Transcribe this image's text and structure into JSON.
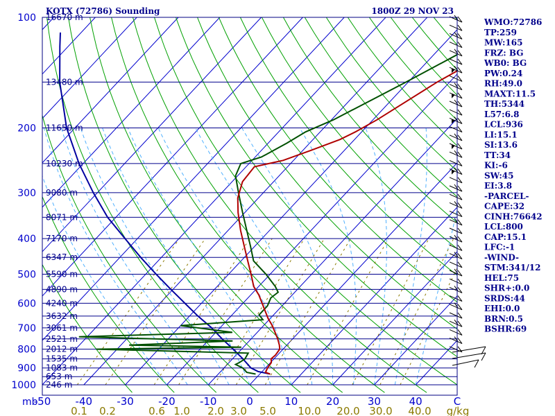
{
  "chart_data": {
    "type": "line",
    "title_left": "KOTX (72786) Sounding",
    "title_right": "1800Z 29 NOV 23",
    "y_unit_label": "mb",
    "mixing_ratio_unit": "g/kg",
    "temp_range": [
      -50,
      50
    ],
    "pressure_range": [
      1000,
      100
    ],
    "pressure_ticks": [
      100,
      200,
      300,
      400,
      500,
      600,
      700,
      800,
      900,
      1000
    ],
    "temp_ticks": [
      -50,
      -40,
      -30,
      -20,
      -10,
      0,
      10,
      20,
      30,
      40,
      50
    ],
    "temp_tick_labels": [
      "-50",
      "-40",
      "-30",
      "-20",
      "-10",
      "0",
      "10",
      "20",
      "30",
      "40",
      "C"
    ],
    "mixing_ratio_labels": [
      "0.1",
      "0.2",
      "0.6",
      "1.0",
      "2.0",
      "3.0",
      "5.0",
      "10.0",
      "20.0",
      "30.0",
      "40.0"
    ],
    "height_labels": [
      {
        "p": 100,
        "label": "16670 m"
      },
      {
        "p": 150,
        "label": "13480 m"
      },
      {
        "p": 200,
        "label": "11650 m"
      },
      {
        "p": 250,
        "label": "10230 m"
      },
      {
        "p": 300,
        "label": "9080 m"
      },
      {
        "p": 350,
        "label": "8071 m"
      },
      {
        "p": 400,
        "label": "7170 m"
      },
      {
        "p": 450,
        "label": "6347 m"
      },
      {
        "p": 500,
        "label": "5590 m"
      },
      {
        "p": 550,
        "label": "4890 m"
      },
      {
        "p": 600,
        "label": "4240 m"
      },
      {
        "p": 650,
        "label": "3632 m"
      },
      {
        "p": 700,
        "label": "3061 m"
      },
      {
        "p": 750,
        "label": "2521 m"
      },
      {
        "p": 800,
        "label": "2012 m"
      },
      {
        "p": 850,
        "label": "1535 m"
      },
      {
        "p": 900,
        "label": "1083 m"
      },
      {
        "p": 950,
        "label": "653 m"
      },
      {
        "p": 1000,
        "label": "246 m"
      }
    ],
    "temperature_series": {
      "color": "#b00000",
      "points": [
        [
          935,
          2.5
        ],
        [
          925,
          1.0
        ],
        [
          900,
          0.5
        ],
        [
          870,
          0.2
        ],
        [
          850,
          -0.7
        ],
        [
          830,
          -0.5
        ],
        [
          800,
          -0.8
        ],
        [
          780,
          -1.8
        ],
        [
          750,
          -3.6
        ],
        [
          720,
          -5.7
        ],
        [
          690,
          -7.9
        ],
        [
          660,
          -10.5
        ],
        [
          620,
          -13.7
        ],
        [
          570,
          -18.0
        ],
        [
          540,
          -21.2
        ],
        [
          500,
          -24.6
        ],
        [
          460,
          -28.4
        ],
        [
          420,
          -32.5
        ],
        [
          380,
          -37.0
        ],
        [
          340,
          -41.6
        ],
        [
          310,
          -45.0
        ],
        [
          280,
          -47.5
        ],
        [
          255,
          -48.0
        ],
        [
          245,
          -42.5
        ],
        [
          230,
          -38.0
        ],
        [
          215,
          -33.5
        ],
        [
          205,
          -31.5
        ],
        [
          190,
          -29.0
        ],
        [
          150,
          -23.0
        ],
        [
          125,
          -17.0
        ],
        [
          100,
          -9.0
        ]
      ]
    },
    "dewpoint_series": {
      "color": "#005000",
      "points": [
        [
          935,
          -1.0
        ],
        [
          925,
          -3.5
        ],
        [
          900,
          -5.5
        ],
        [
          880,
          -8.0
        ],
        [
          870,
          -7.5
        ],
        [
          850,
          -7.0
        ],
        [
          820,
          -7.5
        ],
        [
          800,
          -45.0
        ],
        [
          790,
          -10.5
        ],
        [
          780,
          -38.0
        ],
        [
          760,
          -14.0
        ],
        [
          740,
          -52.0
        ],
        [
          720,
          -16.0
        ],
        [
          690,
          -30.0
        ],
        [
          665,
          -11.5
        ],
        [
          645,
          -13.5
        ],
        [
          610,
          -13.5
        ],
        [
          580,
          -14.5
        ],
        [
          560,
          -14.0
        ],
        [
          540,
          -16.0
        ],
        [
          500,
          -21.0
        ],
        [
          460,
          -27.0
        ],
        [
          420,
          -31.0
        ],
        [
          380,
          -35.5
        ],
        [
          340,
          -40.5
        ],
        [
          300,
          -46.0
        ],
        [
          270,
          -50.5
        ],
        [
          250,
          -52.0
        ],
        [
          240,
          -48.5
        ],
        [
          220,
          -45.5
        ],
        [
          205,
          -43.5
        ],
        [
          190,
          -39.5
        ],
        [
          150,
          -30.5
        ],
        [
          125,
          -24.0
        ],
        [
          100,
          -14.0
        ]
      ]
    },
    "parcel_series": {
      "color": "#0000a0",
      "points": [
        [
          935,
          2.5
        ],
        [
          920,
          -1.0
        ],
        [
          900,
          -3.5
        ],
        [
          850,
          -7.5
        ],
        [
          800,
          -12.0
        ],
        [
          750,
          -17.0
        ],
        [
          700,
          -22.0
        ],
        [
          650,
          -28.0
        ],
        [
          600,
          -34.0
        ],
        [
          550,
          -40.5
        ],
        [
          500,
          -47.5
        ],
        [
          450,
          -55.0
        ],
        [
          400,
          -63.0
        ],
        [
          350,
          -72.0
        ],
        [
          300,
          -81.0
        ],
        [
          250,
          -91.0
        ],
        [
          200,
          -102.0
        ],
        [
          150,
          -114.0
        ],
        [
          120,
          -122.0
        ],
        [
          110,
          -125.0
        ]
      ]
    },
    "indices": [
      "WMO:72786",
      "TP:259",
      "MW:165",
      "FRZ: BG",
      "WB0: BG",
      "PW:0.24",
      "RH:49.0",
      "MAXT:11.5",
      "TH:5344",
      "L57:6.8",
      "LCL:936",
      "LI:15.1",
      "SI:13.6",
      "TT:34",
      "KI:-6",
      "SW:45",
      "EI:3.8",
      "-PARCEL-",
      "CAPE:32",
      "CINH:76642",
      "LCL:800",
      "CAP:15.1",
      "LFC:-1",
      "-WIND-",
      "STM:341/12",
      "HEL:75",
      "SHR+:0.0",
      "SRDS:44",
      "EHI:0.0",
      "BRN:0.5",
      "BSHR:69"
    ],
    "grid": true,
    "colors": {
      "isobar": "#00008b",
      "isotherm": "#0000cd",
      "dry_adiabat": "#00a000",
      "moist_adiabat": "#4fb0ff",
      "mixing_ratio": "#8b7a00",
      "wind_barb": "#000000"
    }
  }
}
